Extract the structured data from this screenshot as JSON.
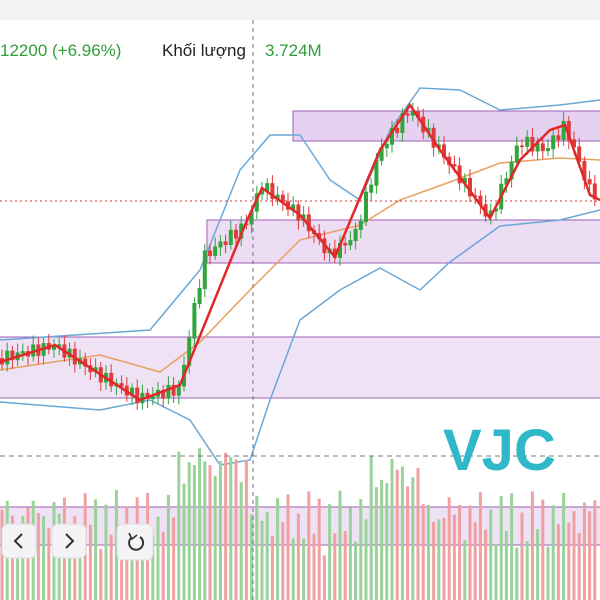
{
  "header": {
    "price_change": "12200 (+6.96%)",
    "volume_label": "Khối lượng",
    "volume_value": "3.724M"
  },
  "watermark": "VJC"
}
